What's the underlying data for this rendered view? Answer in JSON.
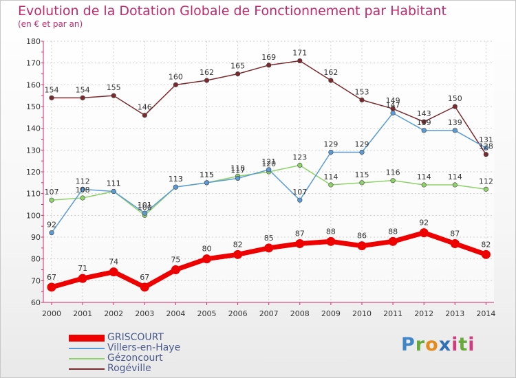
{
  "header": {
    "title": "Evolution de la Dotation Globale de Fonctionnement par Habitant",
    "subtitle": "(en € et par an)"
  },
  "logo": {
    "text": "Proxiti",
    "parts": [
      "P",
      "r",
      "o",
      "x",
      "i",
      "t",
      "i"
    ]
  },
  "chart_data": {
    "type": "line",
    "title": "Evolution de la Dotation Globale de Fonctionnement par Habitant",
    "subtitle": "(en € et par an)",
    "x": [
      "2000",
      "2001",
      "2002",
      "2003",
      "2004",
      "2005",
      "2006",
      "2007",
      "2008",
      "2009",
      "2010",
      "2011",
      "2012",
      "2013",
      "2014"
    ],
    "ylim": [
      60,
      180
    ],
    "yticks": [
      60,
      70,
      80,
      90,
      100,
      110,
      120,
      130,
      140,
      150,
      160,
      170,
      180
    ],
    "grid": true,
    "legend_position": "bottom-left",
    "series": [
      {
        "name": "GRISCOURT",
        "color": "#ee0000",
        "emphasis": true,
        "values": [
          67,
          71,
          74,
          67,
          75,
          80,
          82,
          85,
          87,
          88,
          86,
          88,
          92,
          87,
          82
        ]
      },
      {
        "name": "Villers-en-Haye",
        "color": "#5b9bd5",
        "emphasis": false,
        "values": [
          92,
          112,
          111,
          101,
          113,
          115,
          117,
          121,
          107,
          129,
          129,
          147,
          139,
          139,
          131
        ]
      },
      {
        "name": "Gézoncourt",
        "color": "#8fd16a",
        "emphasis": false,
        "values": [
          107,
          108,
          111,
          100,
          113,
          115,
          118,
          120,
          123,
          114,
          115,
          116,
          114,
          114,
          112
        ]
      },
      {
        "name": "Rogéville",
        "color": "#7a2a2e",
        "emphasis": false,
        "values": [
          154,
          154,
          155,
          146,
          160,
          162,
          165,
          169,
          171,
          162,
          153,
          149,
          143,
          150,
          128
        ]
      }
    ]
  }
}
